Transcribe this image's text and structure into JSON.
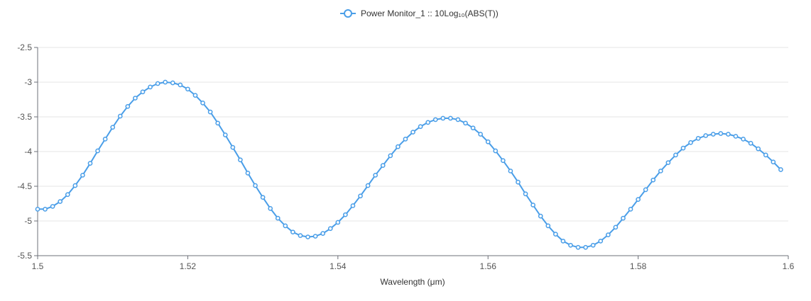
{
  "chart_data": {
    "type": "line",
    "title": "",
    "xlabel": "Wavelength (μm)",
    "ylabel": "",
    "xlim": [
      1.5,
      1.6
    ],
    "ylim": [
      -5.5,
      -2.5
    ],
    "x_ticks": [
      "1.5",
      "1.52",
      "1.54",
      "1.56",
      "1.58",
      "1.6"
    ],
    "y_ticks": [
      "-2.5",
      "-3",
      "-3.5",
      "-4",
      "-4.5",
      "-5",
      "-5.5"
    ],
    "grid": {
      "horizontal": true,
      "vertical": false
    },
    "legend_position": "top-center",
    "series_color": "#4a9ee8",
    "series": [
      {
        "name": "Power Monitor_1 :: 10Log₁₀(ABS(T))",
        "points": [
          [
            1.5,
            -4.83
          ],
          [
            1.501,
            -4.83
          ],
          [
            1.502,
            -4.79
          ],
          [
            1.503,
            -4.72
          ],
          [
            1.504,
            -4.62
          ],
          [
            1.505,
            -4.49
          ],
          [
            1.506,
            -4.34
          ],
          [
            1.507,
            -4.17
          ],
          [
            1.508,
            -3.99
          ],
          [
            1.509,
            -3.82
          ],
          [
            1.51,
            -3.65
          ],
          [
            1.511,
            -3.49
          ],
          [
            1.512,
            -3.35
          ],
          [
            1.513,
            -3.23
          ],
          [
            1.514,
            -3.14
          ],
          [
            1.515,
            -3.07
          ],
          [
            1.516,
            -3.02
          ],
          [
            1.517,
            -3.0
          ],
          [
            1.518,
            -3.01
          ],
          [
            1.519,
            -3.04
          ],
          [
            1.52,
            -3.1
          ],
          [
            1.521,
            -3.19
          ],
          [
            1.522,
            -3.3
          ],
          [
            1.523,
            -3.43
          ],
          [
            1.524,
            -3.59
          ],
          [
            1.525,
            -3.76
          ],
          [
            1.526,
            -3.94
          ],
          [
            1.527,
            -4.12
          ],
          [
            1.528,
            -4.31
          ],
          [
            1.529,
            -4.49
          ],
          [
            1.53,
            -4.66
          ],
          [
            1.531,
            -4.82
          ],
          [
            1.532,
            -4.96
          ],
          [
            1.533,
            -5.07
          ],
          [
            1.534,
            -5.16
          ],
          [
            1.535,
            -5.21
          ],
          [
            1.536,
            -5.23
          ],
          [
            1.537,
            -5.22
          ],
          [
            1.538,
            -5.18
          ],
          [
            1.539,
            -5.11
          ],
          [
            1.54,
            -5.02
          ],
          [
            1.541,
            -4.91
          ],
          [
            1.542,
            -4.78
          ],
          [
            1.543,
            -4.64
          ],
          [
            1.544,
            -4.49
          ],
          [
            1.545,
            -4.34
          ],
          [
            1.546,
            -4.2
          ],
          [
            1.547,
            -4.06
          ],
          [
            1.548,
            -3.93
          ],
          [
            1.549,
            -3.82
          ],
          [
            1.55,
            -3.72
          ],
          [
            1.551,
            -3.64
          ],
          [
            1.552,
            -3.58
          ],
          [
            1.553,
            -3.54
          ],
          [
            1.554,
            -3.52
          ],
          [
            1.555,
            -3.52
          ],
          [
            1.556,
            -3.54
          ],
          [
            1.557,
            -3.59
          ],
          [
            1.558,
            -3.66
          ],
          [
            1.559,
            -3.75
          ],
          [
            1.56,
            -3.86
          ],
          [
            1.561,
            -3.99
          ],
          [
            1.562,
            -4.13
          ],
          [
            1.563,
            -4.28
          ],
          [
            1.564,
            -4.44
          ],
          [
            1.565,
            -4.61
          ],
          [
            1.566,
            -4.77
          ],
          [
            1.567,
            -4.93
          ],
          [
            1.568,
            -5.07
          ],
          [
            1.569,
            -5.19
          ],
          [
            1.57,
            -5.29
          ],
          [
            1.571,
            -5.35
          ],
          [
            1.572,
            -5.38
          ],
          [
            1.573,
            -5.38
          ],
          [
            1.574,
            -5.35
          ],
          [
            1.575,
            -5.29
          ],
          [
            1.576,
            -5.2
          ],
          [
            1.577,
            -5.09
          ],
          [
            1.578,
            -4.96
          ],
          [
            1.579,
            -4.83
          ],
          [
            1.58,
            -4.69
          ],
          [
            1.581,
            -4.55
          ],
          [
            1.582,
            -4.41
          ],
          [
            1.583,
            -4.28
          ],
          [
            1.584,
            -4.16
          ],
          [
            1.585,
            -4.05
          ],
          [
            1.586,
            -3.95
          ],
          [
            1.587,
            -3.87
          ],
          [
            1.588,
            -3.81
          ],
          [
            1.589,
            -3.77
          ],
          [
            1.59,
            -3.75
          ],
          [
            1.591,
            -3.74
          ],
          [
            1.592,
            -3.75
          ],
          [
            1.593,
            -3.78
          ],
          [
            1.594,
            -3.82
          ],
          [
            1.595,
            -3.88
          ],
          [
            1.596,
            -3.96
          ],
          [
            1.597,
            -4.05
          ],
          [
            1.598,
            -4.15
          ],
          [
            1.599,
            -4.26
          ]
        ]
      }
    ]
  }
}
